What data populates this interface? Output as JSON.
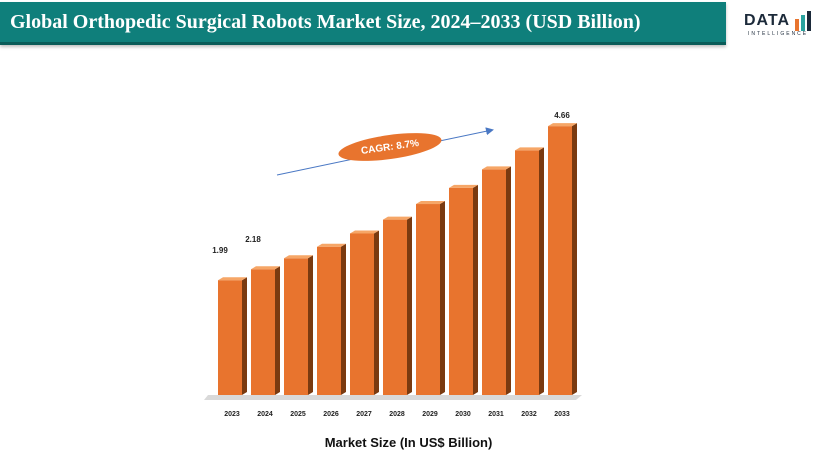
{
  "header": {
    "title": "Global Orthopedic Surgical Robots Market Size, 2024–2033 (USD Billion)",
    "logo_text": "DATA",
    "logo_sub": "INTELLIGENCE",
    "bar_color": "#0f7f7b"
  },
  "chart_data": {
    "type": "bar",
    "title": "",
    "xlabel": "Market Size (In US$ Billion)",
    "ylabel": "",
    "categories": [
      "2023",
      "2024",
      "2025",
      "2026",
      "2027",
      "2028",
      "2029",
      "2030",
      "2031",
      "2032",
      "2033"
    ],
    "values": [
      1.99,
      2.18,
      2.37,
      2.57,
      2.8,
      3.04,
      3.31,
      3.59,
      3.91,
      4.24,
      4.66
    ],
    "data_labels": [
      {
        "category": "2023",
        "text": "1.99"
      },
      {
        "category": "2024",
        "text": "2.18"
      },
      {
        "category": "2033",
        "text": "4.66"
      }
    ],
    "annotation": "CAGR: 8.7%",
    "ylim": [
      0,
      5.2
    ],
    "grid": false,
    "colors": {
      "bar_front": "#e8742e",
      "bar_side": "#7a3a10",
      "bar_top": "#f6a667",
      "floor": "#d9d9d9",
      "annotation": "#e8742e",
      "arrow": "#4a78c4"
    }
  }
}
